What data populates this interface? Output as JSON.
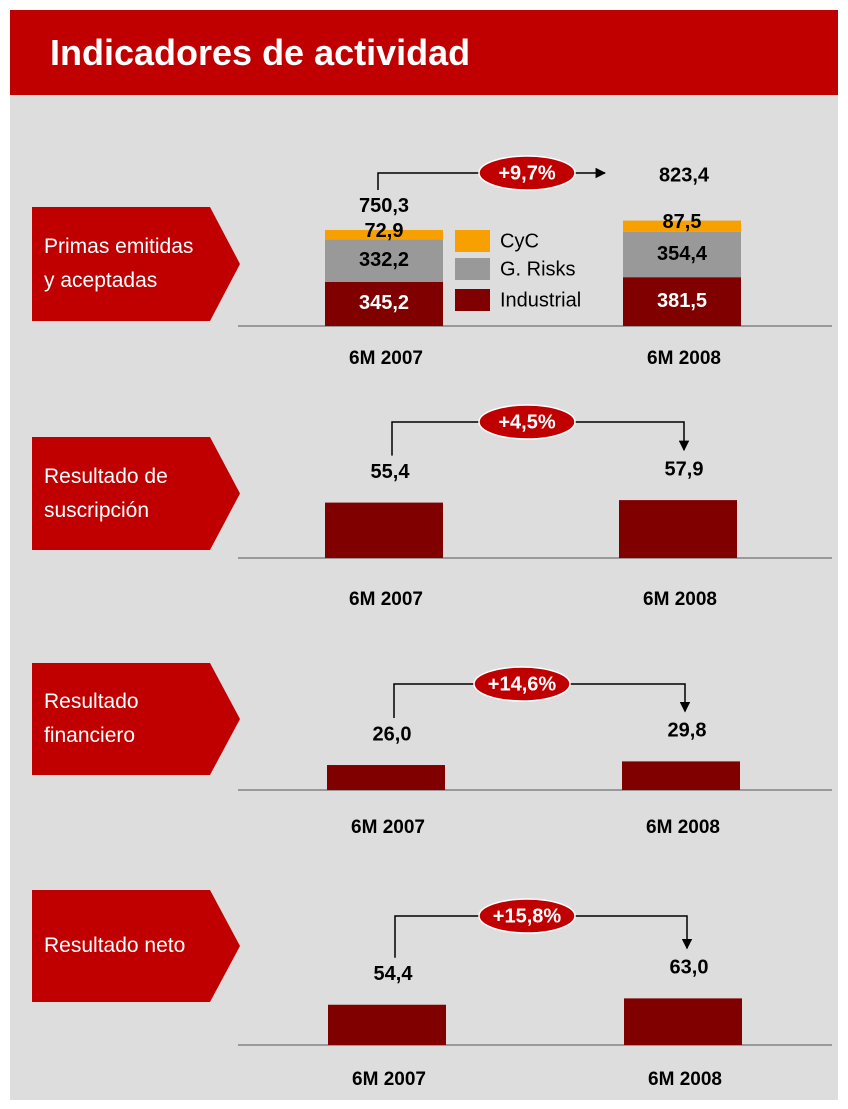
{
  "title": "Indicadores de actividad",
  "chart_data": [
    {
      "type": "stacked_bar",
      "title": "Primas emitidas y aceptadas",
      "categories": [
        "6M 2007",
        "6M 2008"
      ],
      "series": [
        {
          "name": "Industrial",
          "color": "#800000",
          "values": [
            345.2,
            381.5
          ],
          "value_labels": [
            "345,2",
            "381,5"
          ]
        },
        {
          "name": "G. Risks",
          "color": "#999999",
          "values": [
            332.2,
            354.4
          ],
          "value_labels": [
            "332,2",
            "354,4"
          ]
        },
        {
          "name": "CyC",
          "color": "#f7a000",
          "values": [
            72.9,
            87.5
          ],
          "value_labels": [
            "72,9",
            "87,5"
          ]
        }
      ],
      "totals": [
        750.3,
        823.4
      ],
      "total_labels": [
        "750,3",
        "823,4"
      ],
      "annotation": "+9,7%"
    },
    {
      "type": "bar",
      "title": "Resultado de suscripción",
      "categories": [
        "6M 2007",
        "6M 2008"
      ],
      "values": [
        55.4,
        57.9
      ],
      "value_labels": [
        "55,4",
        "57,9"
      ],
      "color": "#800000",
      "annotation": "+4,5%"
    },
    {
      "type": "bar",
      "title": "Resultado financiero",
      "categories": [
        "6M 2007",
        "6M 2008"
      ],
      "values": [
        26.0,
        29.8
      ],
      "value_labels": [
        "26,0",
        "29,8"
      ],
      "color": "#800000",
      "annotation": "+14,6%"
    },
    {
      "type": "bar",
      "title": "Resultado neto",
      "categories": [
        "6M 2007",
        "6M 2008"
      ],
      "values": [
        54.4,
        63.0
      ],
      "value_labels": [
        "54,4",
        "63,0"
      ],
      "color": "#800000",
      "annotation": "+15,8%"
    }
  ]
}
